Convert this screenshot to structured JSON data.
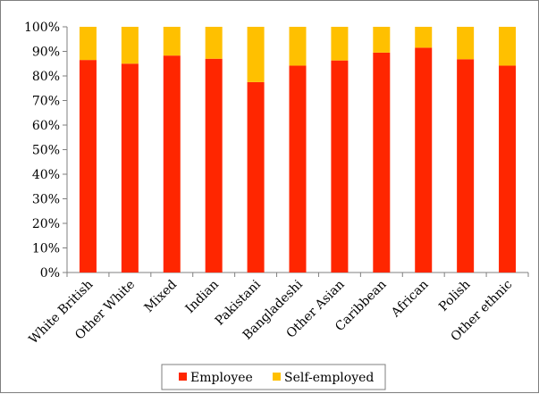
{
  "chart_data": {
    "type": "bar",
    "stacked": true,
    "categories": [
      "White British",
      "Other White",
      "Mixed",
      "Indian",
      "Pakistani",
      "Bangladeshi",
      "Other Asian",
      "Caribbean",
      "African",
      "Polish",
      "Other ethnic"
    ],
    "series": [
      {
        "name": "Employee",
        "values": [
          86.5,
          85,
          88.3,
          87,
          77.5,
          84.2,
          86.3,
          89.5,
          91.5,
          86.8,
          84.2
        ]
      },
      {
        "name": "Self-employed",
        "values": [
          13.5,
          15,
          11.7,
          13,
          22.5,
          15.8,
          13.7,
          10.5,
          8.5,
          13.2,
          15.8
        ]
      }
    ],
    "y_ticks": [
      "0%",
      "10%",
      "20%",
      "30%",
      "40%",
      "50%",
      "60%",
      "70%",
      "80%",
      "90%",
      "100%"
    ],
    "ylim": [
      0,
      100
    ],
    "grid": false,
    "legend": "bottom",
    "colors": {
      "Employee": "#ff2600",
      "Self-employed": "#ffc000"
    }
  }
}
